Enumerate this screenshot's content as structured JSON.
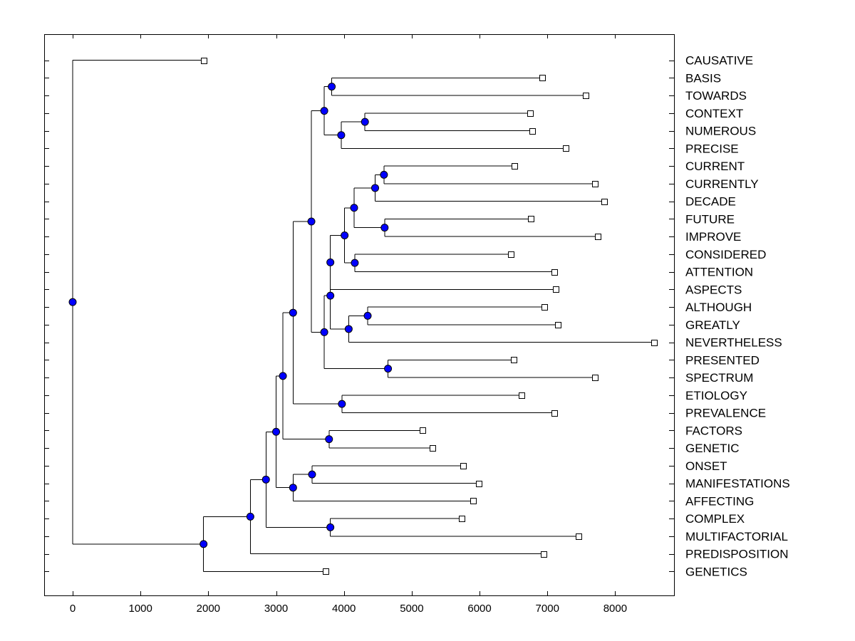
{
  "chart_data": {
    "type": "dendrogram",
    "title": "",
    "xlabel": "",
    "ylabel": "",
    "xlim": [
      -420,
      9000
    ],
    "x_ticks": [
      0,
      1000,
      2000,
      3000,
      4000,
      5000,
      6000,
      7000,
      8000
    ],
    "leaves": [
      {
        "label": "CAUSATIVE",
        "value": 1930
      },
      {
        "label": "BASIS",
        "value": 6920
      },
      {
        "label": "TOWARDS",
        "value": 7570
      },
      {
        "label": "CONTEXT",
        "value": 6750
      },
      {
        "label": "NUMEROUS",
        "value": 6780
      },
      {
        "label": "PRECISE",
        "value": 7270
      },
      {
        "label": "CURRENT",
        "value": 6510
      },
      {
        "label": "CURRENTLY",
        "value": 7700
      },
      {
        "label": "DECADE",
        "value": 7840
      },
      {
        "label": "FUTURE",
        "value": 6760
      },
      {
        "label": "IMPROVE",
        "value": 7740
      },
      {
        "label": "CONSIDERED",
        "value": 6460
      },
      {
        "label": "ATTENTION",
        "value": 7100
      },
      {
        "label": "ASPECTS",
        "value": 7120
      },
      {
        "label": "ALTHOUGH",
        "value": 6960
      },
      {
        "label": "GREATLY",
        "value": 7150
      },
      {
        "label": "NEVERTHELESS",
        "value": 8570
      },
      {
        "label": "PRESENTED",
        "value": 6500
      },
      {
        "label": "SPECTRUM",
        "value": 7700
      },
      {
        "label": "ETIOLOGY",
        "value": 6620
      },
      {
        "label": "PREVALENCE",
        "value": 7100
      },
      {
        "label": "FACTORS",
        "value": 5160
      },
      {
        "label": "GENETIC",
        "value": 5310
      },
      {
        "label": "ONSET",
        "value": 5760
      },
      {
        "label": "MANIFESTATIONS",
        "value": 5990
      },
      {
        "label": "AFFECTING",
        "value": 5900
      },
      {
        "label": "COMPLEX",
        "value": 5740
      },
      {
        "label": "MULTIFACTORIAL",
        "value": 7460
      },
      {
        "label": "PREDISPOSITION",
        "value": 6950
      },
      {
        "label": "GENETICS",
        "value": 3730
      }
    ],
    "nodes": [
      {
        "id": "n1",
        "value": 0,
        "children": [
          "CAUSATIVE",
          "n2"
        ]
      },
      {
        "id": "n2",
        "value": 1930,
        "children": [
          "n3",
          "GENETICS"
        ]
      },
      {
        "id": "n3",
        "value": 2620,
        "children": [
          "n4",
          "PREDISPOSITION"
        ]
      },
      {
        "id": "n4",
        "value": 2850,
        "children": [
          "n5",
          "n19"
        ]
      },
      {
        "id": "n5",
        "value": 3000,
        "children": [
          "n6",
          "n17"
        ]
      },
      {
        "id": "n6",
        "value": 3100,
        "children": [
          "n7",
          "n16"
        ]
      },
      {
        "id": "n7",
        "value": 3250,
        "children": [
          "n8",
          "n15"
        ]
      },
      {
        "id": "n8",
        "value": 3520,
        "children": [
          "n9",
          "n10"
        ]
      },
      {
        "id": "n9",
        "value": 3710,
        "children": [
          "n20",
          "n21"
        ]
      },
      {
        "id": "n20",
        "value": 3820,
        "children": [
          "BASIS",
          "TOWARDS"
        ]
      },
      {
        "id": "n21",
        "value": 3960,
        "children": [
          "n22",
          "PRECISE"
        ]
      },
      {
        "id": "n22",
        "value": 4310,
        "children": [
          "CONTEXT",
          "NUMEROUS"
        ]
      },
      {
        "id": "n10",
        "value": 3710,
        "children": [
          "n11",
          "n14"
        ]
      },
      {
        "id": "n11",
        "value": 3800,
        "children": [
          "n12",
          "n13"
        ]
      },
      {
        "id": "n12",
        "value": 3800,
        "children": [
          "n23",
          "ASPECTS"
        ]
      },
      {
        "id": "n23",
        "value": 4010,
        "children": [
          "n24",
          "n27"
        ]
      },
      {
        "id": "n24",
        "value": 4150,
        "children": [
          "n25",
          "n26"
        ]
      },
      {
        "id": "n25",
        "value": 4460,
        "children": [
          "n28",
          "DECADE"
        ]
      },
      {
        "id": "n28",
        "value": 4590,
        "children": [
          "CURRENT",
          "CURRENTLY"
        ]
      },
      {
        "id": "n26",
        "value": 4600,
        "children": [
          "FUTURE",
          "IMPROVE"
        ]
      },
      {
        "id": "n27",
        "value": 4160,
        "children": [
          "CONSIDERED",
          "ATTENTION"
        ]
      },
      {
        "id": "n13",
        "value": 4070,
        "children": [
          "n29",
          "NEVERTHELESS"
        ]
      },
      {
        "id": "n29",
        "value": 4350,
        "children": [
          "ALTHOUGH",
          "GREATLY"
        ]
      },
      {
        "id": "n14",
        "value": 4650,
        "children": [
          "PRESENTED",
          "SPECTRUM"
        ]
      },
      {
        "id": "n15",
        "value": 3970,
        "children": [
          "ETIOLOGY",
          "PREVALENCE"
        ]
      },
      {
        "id": "n16",
        "value": 3780,
        "children": [
          "FACTORS",
          "GENETIC"
        ]
      },
      {
        "id": "n17",
        "value": 3250,
        "children": [
          "n18",
          "AFFECTING"
        ]
      },
      {
        "id": "n18",
        "value": 3530,
        "children": [
          "ONSET",
          "MANIFESTATIONS"
        ]
      },
      {
        "id": "n19",
        "value": 3800,
        "children": [
          "COMPLEX",
          "MULTIFACTORIAL"
        ]
      }
    ],
    "colors": {
      "node_fill": "#0000ff",
      "leaf_fill": "#ffffff",
      "line": "#000000"
    }
  }
}
